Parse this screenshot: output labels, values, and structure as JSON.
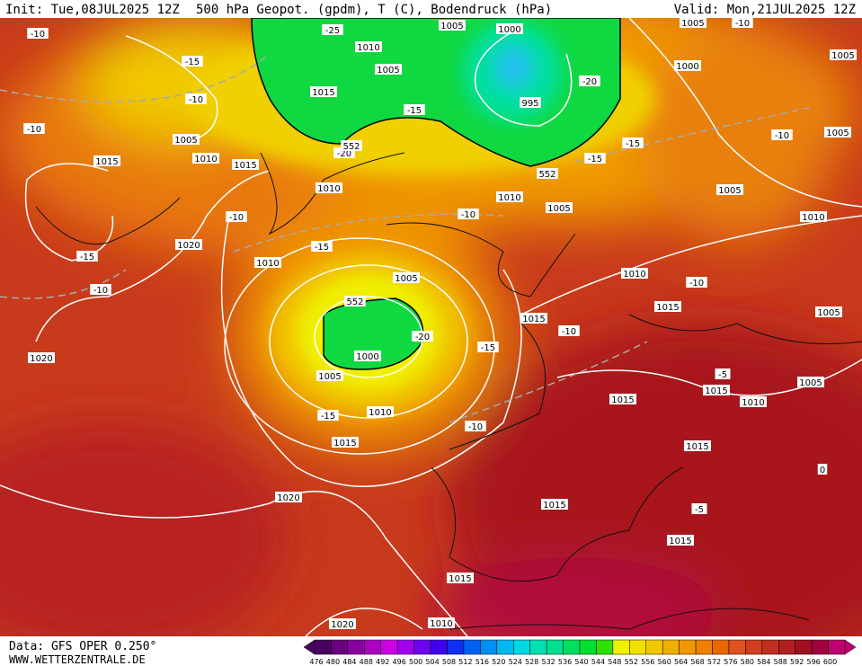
{
  "header": {
    "init": "Init: Tue,08JUL2025 12Z",
    "title": "500 hPa Geopot. (gpdm), T (C), Bodendruck (hPa)",
    "valid": "Valid: Mon,21JUL2025 12Z"
  },
  "footer": {
    "source": "Data: GFS OPER 0.250°",
    "site": "WWW.WETTERZENTRALE.DE"
  },
  "legend": {
    "levels": [
      476,
      480,
      484,
      488,
      492,
      496,
      500,
      504,
      508,
      512,
      516,
      520,
      524,
      528,
      532,
      536,
      540,
      544,
      548,
      552,
      556,
      560,
      564,
      568,
      572,
      576,
      580,
      584,
      588,
      592,
      596,
      600
    ],
    "colors": [
      "#4b0060",
      "#6a007f",
      "#8a009f",
      "#aa00c0",
      "#cc00e0",
      "#a000f0",
      "#7000f0",
      "#4000f0",
      "#1030f0",
      "#0060f0",
      "#0090f0",
      "#00b8f0",
      "#00d8e0",
      "#00e0b0",
      "#00e090",
      "#00e060",
      "#00e030",
      "#30e000",
      "#f0f000",
      "#f0e000",
      "#f0c800",
      "#f0b000",
      "#f09800",
      "#f08000",
      "#e86800",
      "#e05020",
      "#d04020",
      "#c03020",
      "#b02020",
      "#a01020",
      "#a00040",
      "#c00070"
    ]
  },
  "contour_labels": [
    "1005",
    "1000",
    "1010",
    "1005",
    "1015",
    "995",
    "-20",
    "-15",
    "-25",
    "-10",
    "-15",
    "-10",
    "-10",
    "1005",
    "1010",
    "1015",
    "1015",
    "-20",
    "552",
    "552",
    "-15",
    "-15",
    "1010",
    "1010",
    "1005",
    "-10",
    "-10",
    "1005",
    "1000",
    "1005",
    "-10",
    "1005",
    "-10",
    "1005",
    "1010",
    "1020",
    "-15",
    "1010",
    "-15",
    "-10",
    "1005",
    "1010",
    "-10",
    "552",
    "1015",
    "1005",
    "1015",
    "-20",
    "-10",
    "-15",
    "1000",
    "1020",
    "1005",
    "-5",
    "1015",
    "1005",
    "1015",
    "1010",
    "-15",
    "1010",
    "-10",
    "1015",
    "1015",
    "0",
    "1020",
    "1015",
    "-5",
    "1015",
    "1015",
    "1020",
    "1010"
  ]
}
